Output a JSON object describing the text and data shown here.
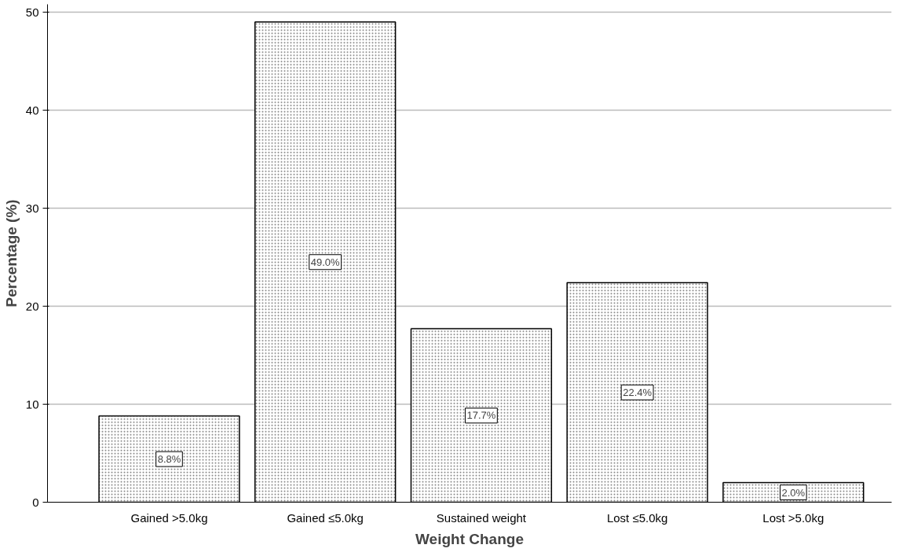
{
  "chart_data": {
    "type": "bar",
    "xlabel": "Weight Change",
    "ylabel": "Percentage (%)",
    "categories": [
      "Gained >5.0kg",
      "Gained ≤5.0kg",
      "Sustained weight",
      "Lost ≤5.0kg",
      "Lost >5.0kg"
    ],
    "values": [
      8.8,
      49.0,
      17.7,
      22.4,
      2.0
    ],
    "value_labels": [
      "8.8%",
      "49.0%",
      "17.7%",
      "22.4%",
      "2.0%"
    ],
    "color": "#ffffff",
    "ylim": [
      0,
      50.8
    ],
    "yticks": [
      0,
      10,
      20,
      30,
      40,
      50
    ],
    "grid": "y"
  }
}
